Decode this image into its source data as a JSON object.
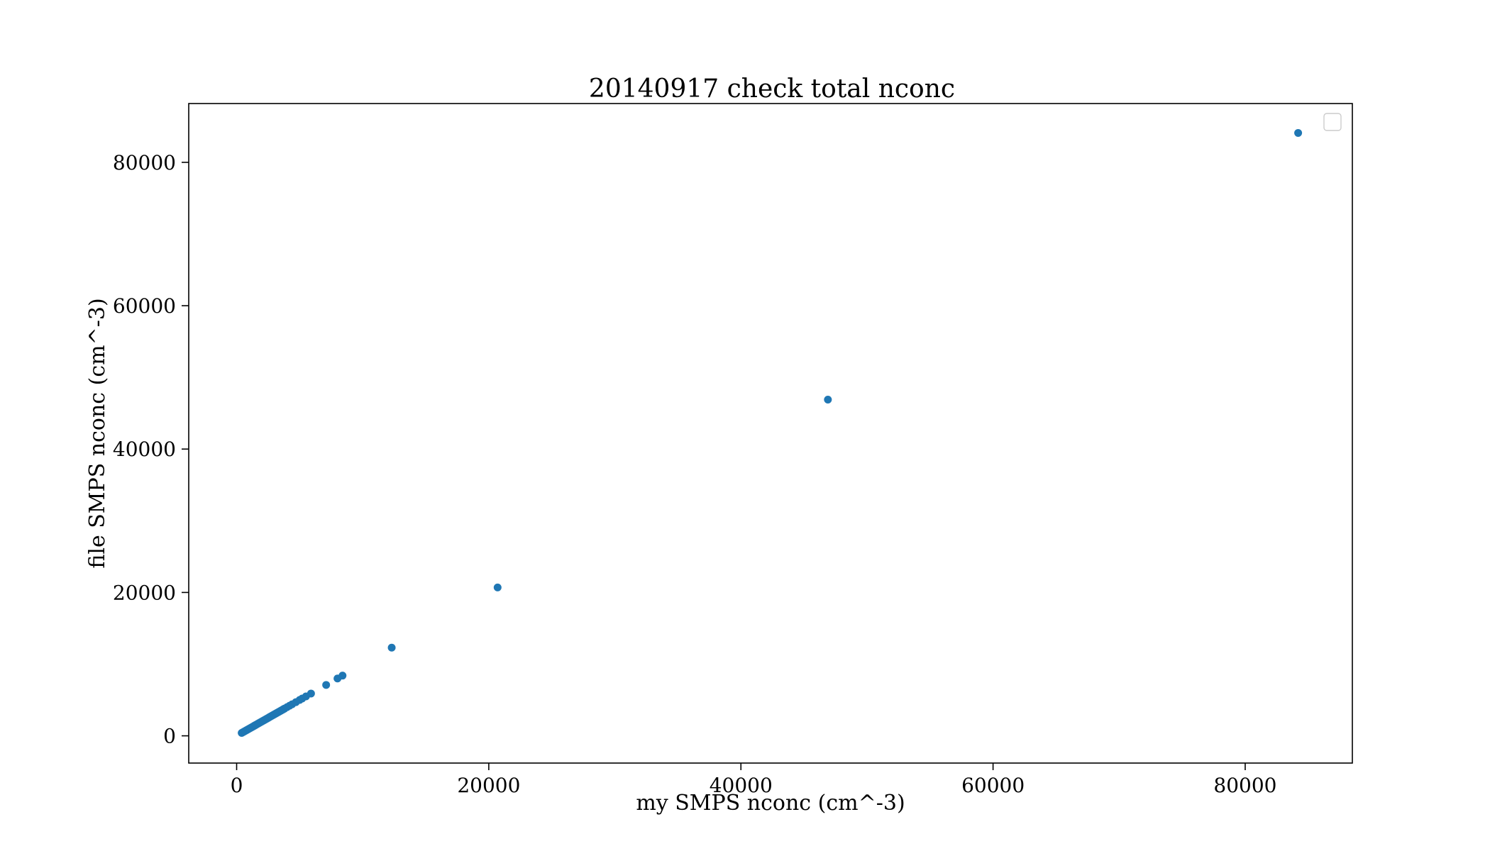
{
  "chart_data": {
    "type": "scatter",
    "title": "20140917 check total nconc",
    "xlabel": "my SMPS nconc (cm^-3)",
    "ylabel": "file SMPS nconc (cm^-3)",
    "xlim": [
      -3800,
      88500
    ],
    "ylim": [
      -3800,
      88200
    ],
    "xticks": [
      0,
      20000,
      40000,
      60000,
      80000
    ],
    "yticks": [
      0,
      20000,
      40000,
      60000,
      80000
    ],
    "grid": false,
    "legend": {
      "placement": "top-right",
      "entries": []
    },
    "series": [
      {
        "color": "#1f77b4",
        "points": [
          [
            400,
            400
          ],
          [
            500,
            500
          ],
          [
            600,
            600
          ],
          [
            700,
            700
          ],
          [
            800,
            800
          ],
          [
            900,
            900
          ],
          [
            1000,
            1000
          ],
          [
            1100,
            1100
          ],
          [
            1200,
            1200
          ],
          [
            1300,
            1300
          ],
          [
            1400,
            1400
          ],
          [
            1500,
            1500
          ],
          [
            1600,
            1600
          ],
          [
            1700,
            1700
          ],
          [
            1800,
            1800
          ],
          [
            1900,
            1900
          ],
          [
            2000,
            2000
          ],
          [
            2100,
            2100
          ],
          [
            2200,
            2200
          ],
          [
            2300,
            2300
          ],
          [
            2400,
            2400
          ],
          [
            2500,
            2500
          ],
          [
            2600,
            2600
          ],
          [
            2700,
            2700
          ],
          [
            2800,
            2800
          ],
          [
            2900,
            2900
          ],
          [
            3000,
            3000
          ],
          [
            3100,
            3100
          ],
          [
            3200,
            3200
          ],
          [
            3300,
            3300
          ],
          [
            3400,
            3400
          ],
          [
            3500,
            3500
          ],
          [
            3600,
            3600
          ],
          [
            3700,
            3700
          ],
          [
            3800,
            3800
          ],
          [
            4000,
            4000
          ],
          [
            4200,
            4200
          ],
          [
            4400,
            4400
          ],
          [
            4700,
            4700
          ],
          [
            5000,
            5000
          ],
          [
            5200,
            5200
          ],
          [
            5500,
            5500
          ],
          [
            5900,
            5900
          ],
          [
            7100,
            7100
          ],
          [
            8000,
            8000
          ],
          [
            8400,
            8400
          ],
          [
            12300,
            12300
          ],
          [
            20700,
            20700
          ],
          [
            46900,
            46900
          ],
          [
            84200,
            84100
          ]
        ]
      }
    ]
  }
}
